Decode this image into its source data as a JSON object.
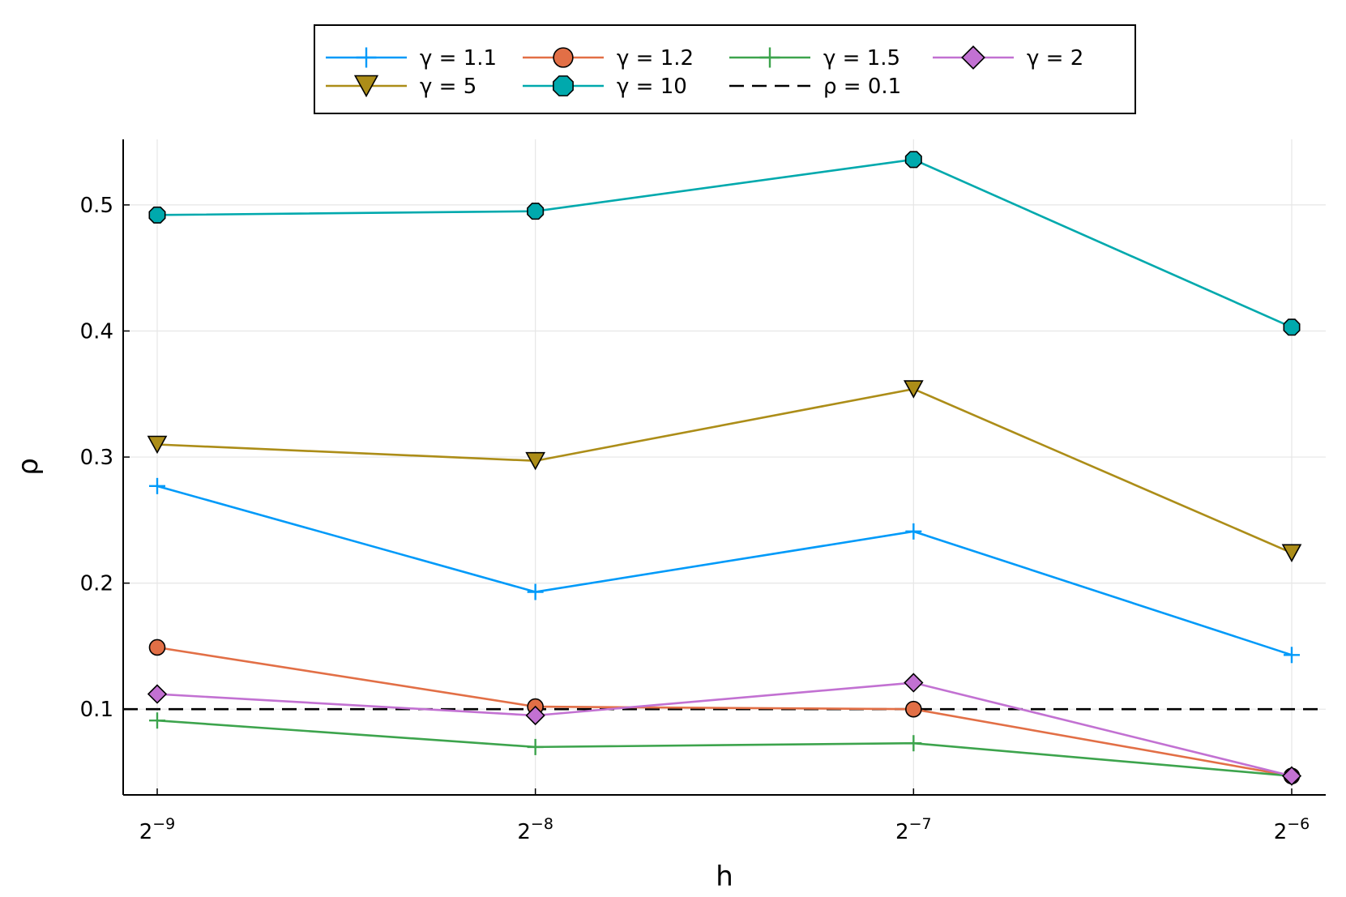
{
  "chart_data": {
    "type": "line",
    "title": "",
    "xlabel": "h",
    "ylabel": "ρ",
    "x": [
      -9,
      -8,
      -7,
      -6
    ],
    "x_tick_base": "2",
    "x_tick_exponents": [
      "−9",
      "−8",
      "−7",
      "−6"
    ],
    "xlim": [
      -9.09,
      -5.91
    ],
    "ylim": [
      0.032,
      0.552
    ],
    "y_ticks": [
      0.1,
      0.2,
      0.3,
      0.4,
      0.5
    ],
    "y_tick_labels": [
      "0.1",
      "0.2",
      "0.3",
      "0.4",
      "0.5"
    ],
    "grid": true,
    "legend_position": "top, outside plot",
    "series": [
      {
        "name": "γ = 1.1",
        "color": "#009af9",
        "marker": "cross",
        "values": [
          0.277,
          0.193,
          0.241,
          0.143
        ]
      },
      {
        "name": "γ = 1.2",
        "color": "#e26f46",
        "marker": "circle",
        "values": [
          0.149,
          0.102,
          0.1,
          0.047
        ]
      },
      {
        "name": "γ = 1.5",
        "color": "#3da44d",
        "marker": "cross",
        "values": [
          0.091,
          0.07,
          0.073,
          0.047
        ]
      },
      {
        "name": "γ = 2",
        "color": "#c271d2",
        "marker": "diamond",
        "values": [
          0.112,
          0.095,
          0.121,
          0.047
        ]
      },
      {
        "name": "γ = 5",
        "color": "#ac8d18",
        "marker": "triangle-down",
        "values": [
          0.31,
          0.297,
          0.354,
          0.224
        ]
      },
      {
        "name": "γ = 10",
        "color": "#00a9ad",
        "marker": "octagon",
        "values": [
          0.492,
          0.495,
          0.536,
          0.403
        ]
      }
    ],
    "reference_line": {
      "name": "ρ = 0.1",
      "value": 0.1,
      "color": "#000000",
      "style": "dashed"
    }
  }
}
